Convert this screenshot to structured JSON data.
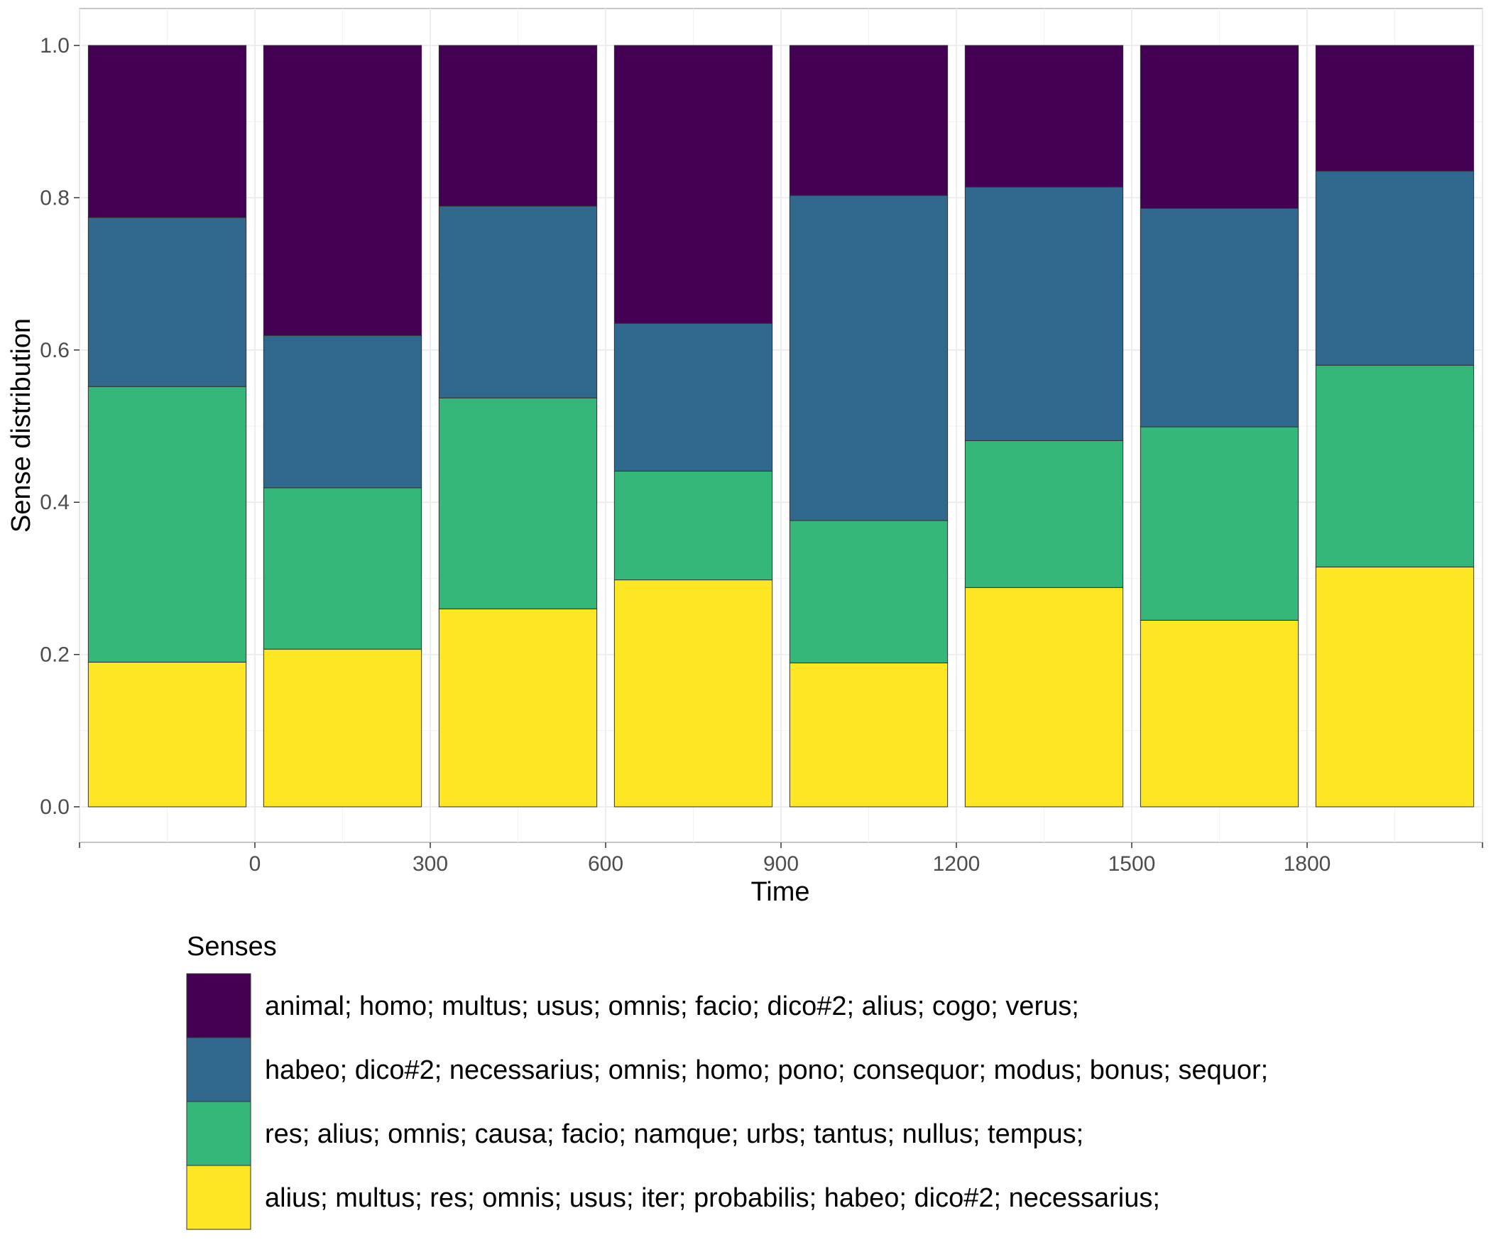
{
  "chart_data": {
    "type": "bar",
    "stacked": true,
    "xlabel": "Time",
    "ylabel": "Sense distribution",
    "ylim": [
      0,
      1
    ],
    "y_ticks": [
      "0.0",
      "0.2",
      "0.4",
      "0.6",
      "0.8",
      "1.0"
    ],
    "x_ticks": [
      "0",
      "300",
      "600",
      "900",
      "1200",
      "1500",
      "1800"
    ],
    "x_tick_values": [
      0,
      300,
      600,
      900,
      1200,
      1500,
      1800
    ],
    "xlim": [
      -300,
      2100
    ],
    "x": [
      -150,
      150,
      450,
      750,
      1050,
      1350,
      1650,
      1950
    ],
    "bar_width": 270,
    "grid": true,
    "legend_title": "Senses",
    "legend_position": "bottom",
    "series": [
      {
        "name": "animal; homo; multus; usus; omnis; facio; dico#2; alius; cogo; verus;",
        "color": "#440154",
        "values": [
          0.226,
          0.381,
          0.211,
          0.365,
          0.197,
          0.186,
          0.214,
          0.165
        ]
      },
      {
        "name": "habeo; dico#2; necessarius; omnis; homo; pono; consequor; modus; bonus; sequor;",
        "color": "#31688E",
        "values": [
          0.222,
          0.2,
          0.252,
          0.194,
          0.427,
          0.333,
          0.287,
          0.255
        ]
      },
      {
        "name": "res; alius; omnis; causa; facio; namque; urbs; tantus; nullus; tempus;",
        "color": "#35B779",
        "values": [
          0.362,
          0.212,
          0.277,
          0.143,
          0.187,
          0.193,
          0.254,
          0.265
        ]
      },
      {
        "name": "alius; multus; res; omnis; usus; iter; probabilis; habeo; dico#2; necessarius;",
        "color": "#FDE725",
        "values": [
          0.19,
          0.207,
          0.26,
          0.298,
          0.189,
          0.288,
          0.245,
          0.315
        ]
      }
    ]
  }
}
